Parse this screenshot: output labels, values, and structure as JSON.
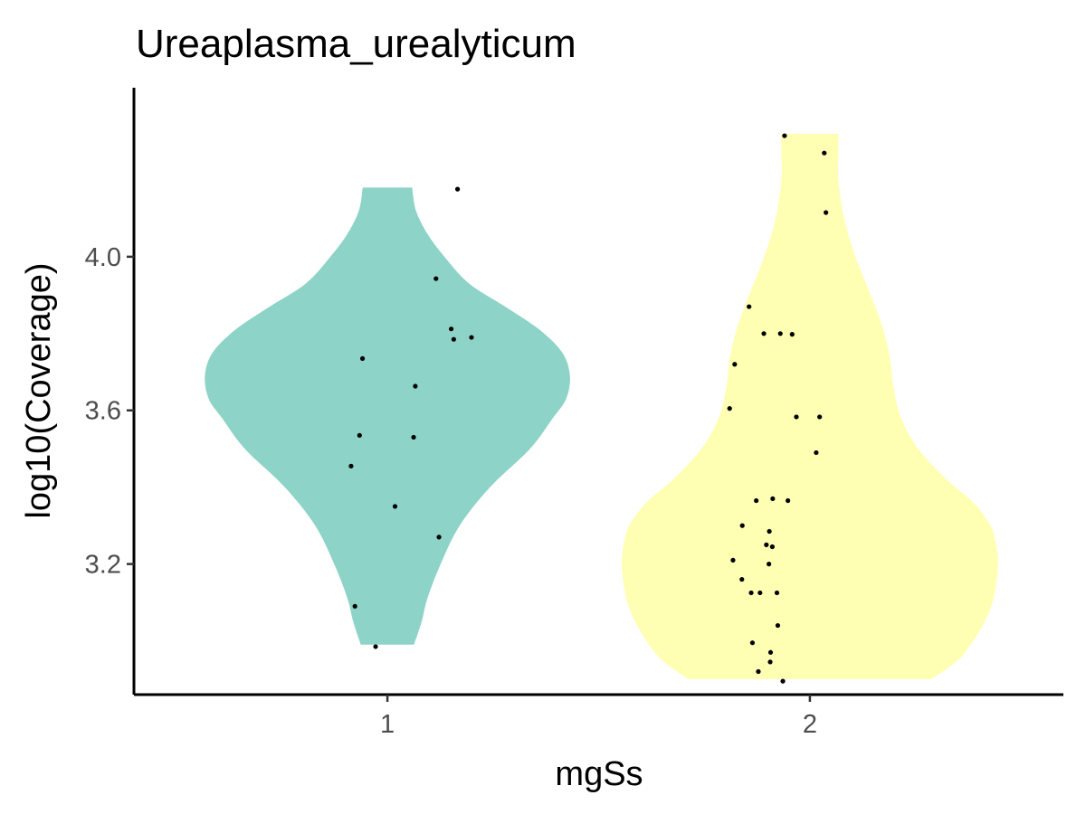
{
  "chart_data": {
    "type": "violin",
    "title": "Ureaplasma_urealyticum",
    "xlabel": "mgSs",
    "ylabel": "log10(Coverage)",
    "categories": [
      "1",
      "2"
    ],
    "ylim": [
      2.86,
      4.44
    ],
    "yticks": [
      3.2,
      3.6,
      4.0
    ],
    "ytick_labels": [
      "3.2",
      "3.6",
      "4.0"
    ],
    "grid": false,
    "legend": "none",
    "series": [
      {
        "category": "1",
        "color": "#8dd3c7",
        "violin": {
          "min": 2.99,
          "max": 4.18,
          "profile": [
            [
              2.99,
              0.14
            ],
            [
              3.05,
              0.18
            ],
            [
              3.11,
              0.21
            ],
            [
              3.2,
              0.28
            ],
            [
              3.3,
              0.38
            ],
            [
              3.4,
              0.54
            ],
            [
              3.5,
              0.75
            ],
            [
              3.58,
              0.87
            ],
            [
              3.63,
              0.94
            ],
            [
              3.69,
              0.96
            ],
            [
              3.75,
              0.92
            ],
            [
              3.81,
              0.8
            ],
            [
              3.87,
              0.62
            ],
            [
              3.93,
              0.43
            ],
            [
              4.0,
              0.3
            ],
            [
              4.06,
              0.21
            ],
            [
              4.12,
              0.15
            ],
            [
              4.18,
              0.13
            ]
          ]
        },
        "points": [
          {
            "x": 0.914,
            "y": 3.455
          },
          {
            "x": 0.923,
            "y": 3.09
          },
          {
            "x": 0.934,
            "y": 3.535
          },
          {
            "x": 0.941,
            "y": 3.735
          },
          {
            "x": 0.972,
            "y": 2.985
          },
          {
            "x": 1.018,
            "y": 3.35
          },
          {
            "x": 1.062,
            "y": 3.53
          },
          {
            "x": 1.066,
            "y": 3.663
          },
          {
            "x": 1.115,
            "y": 3.943
          },
          {
            "x": 1.122,
            "y": 3.27
          },
          {
            "x": 1.151,
            "y": 3.812
          },
          {
            "x": 1.157,
            "y": 3.785
          },
          {
            "x": 1.166,
            "y": 4.176
          },
          {
            "x": 1.199,
            "y": 3.79
          }
        ]
      },
      {
        "category": "2",
        "color": "#ffffb3",
        "violin": {
          "min": 2.9,
          "max": 4.32,
          "profile": [
            [
              2.9,
              0.64
            ],
            [
              2.95,
              0.78
            ],
            [
              3.0,
              0.86
            ],
            [
              3.05,
              0.92
            ],
            [
              3.1,
              0.96
            ],
            [
              3.15,
              0.98
            ],
            [
              3.2,
              0.99
            ],
            [
              3.25,
              0.98
            ],
            [
              3.3,
              0.95
            ],
            [
              3.36,
              0.86
            ],
            [
              3.42,
              0.72
            ],
            [
              3.5,
              0.57
            ],
            [
              3.58,
              0.48
            ],
            [
              3.66,
              0.44
            ],
            [
              3.74,
              0.42
            ],
            [
              3.82,
              0.38
            ],
            [
              3.9,
              0.32
            ],
            [
              4.0,
              0.24
            ],
            [
              4.1,
              0.18
            ],
            [
              4.2,
              0.15
            ],
            [
              4.26,
              0.15
            ],
            [
              4.32,
              0.15
            ]
          ]
        },
        "points": [
          {
            "x": 1.81,
            "y": 3.605
          },
          {
            "x": 1.818,
            "y": 3.21
          },
          {
            "x": 1.822,
            "y": 3.72
          },
          {
            "x": 1.839,
            "y": 3.16
          },
          {
            "x": 1.84,
            "y": 3.3
          },
          {
            "x": 1.856,
            "y": 3.87
          },
          {
            "x": 1.861,
            "y": 3.125
          },
          {
            "x": 1.864,
            "y": 2.995
          },
          {
            "x": 1.873,
            "y": 3.365
          },
          {
            "x": 1.878,
            "y": 2.92
          },
          {
            "x": 1.882,
            "y": 3.125
          },
          {
            "x": 1.891,
            "y": 3.8
          },
          {
            "x": 1.897,
            "y": 3.25
          },
          {
            "x": 1.903,
            "y": 3.2
          },
          {
            "x": 1.904,
            "y": 3.285
          },
          {
            "x": 1.906,
            "y": 2.945
          },
          {
            "x": 1.907,
            "y": 2.97
          },
          {
            "x": 1.911,
            "y": 3.245
          },
          {
            "x": 1.912,
            "y": 3.37
          },
          {
            "x": 1.922,
            "y": 3.125
          },
          {
            "x": 1.924,
            "y": 3.04
          },
          {
            "x": 1.93,
            "y": 3.8
          },
          {
            "x": 1.936,
            "y": 2.895
          },
          {
            "x": 1.94,
            "y": 4.315
          },
          {
            "x": 1.948,
            "y": 3.365
          },
          {
            "x": 1.958,
            "y": 3.798
          },
          {
            "x": 1.968,
            "y": 3.583
          },
          {
            "x": 2.015,
            "y": 3.49
          },
          {
            "x": 2.023,
            "y": 3.583
          },
          {
            "x": 2.034,
            "y": 4.27
          },
          {
            "x": 2.038,
            "y": 4.115
          }
        ]
      }
    ]
  }
}
